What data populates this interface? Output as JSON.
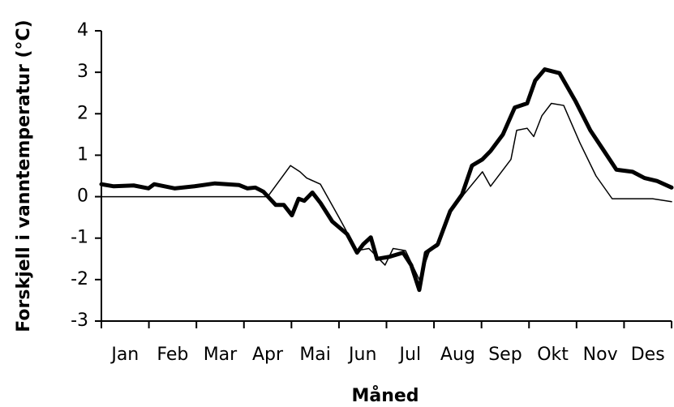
{
  "chart_data": {
    "type": "line",
    "x_label": "Måned",
    "y_label": "Forskjell i vanntemperatur (°C)",
    "categories": [
      "Jan",
      "Feb",
      "Mar",
      "Apr",
      "Mai",
      "Jun",
      "Jul",
      "Aug",
      "Sep",
      "Okt",
      "Nov",
      "Des"
    ],
    "xlim": [
      0,
      12
    ],
    "xticks": [
      0,
      1,
      2,
      3,
      4,
      5,
      6,
      7,
      8,
      9,
      10,
      11,
      12
    ],
    "ylim": [
      -3,
      4
    ],
    "yticks": [
      -3,
      -2,
      -1,
      0,
      1,
      2,
      3,
      4
    ],
    "series": [
      {
        "color": "#000000",
        "width": 5,
        "x": [
          0,
          0.26,
          0.68,
          0.99,
          1.11,
          1.54,
          1.96,
          2.39,
          2.9,
          3.07,
          3.24,
          3.41,
          3.67,
          3.84,
          4.01,
          4.15,
          4.27,
          4.44,
          4.61,
          4.86,
          5.17,
          5.38,
          5.51,
          5.67,
          5.8,
          6.06,
          6.35,
          6.52,
          6.69,
          6.83,
          7.08,
          7.34,
          7.59,
          7.8,
          8.02,
          8.19,
          8.45,
          8.7,
          8.96,
          9.13,
          9.33,
          9.64,
          9.98,
          10.29,
          10.58,
          10.84,
          11.18,
          11.43,
          11.69,
          12
        ],
        "values": [
          0.3,
          0.25,
          0.27,
          0.2,
          0.3,
          0.2,
          0.25,
          0.32,
          0.28,
          0.2,
          0.22,
          0.12,
          -0.2,
          -0.2,
          -0.45,
          -0.05,
          -0.1,
          0.1,
          -0.15,
          -0.6,
          -0.9,
          -1.35,
          -1.15,
          -0.98,
          -1.5,
          -1.45,
          -1.35,
          -1.65,
          -2.25,
          -1.35,
          -1.15,
          -0.35,
          0.05,
          0.75,
          0.9,
          1.1,
          1.5,
          2.15,
          2.25,
          2.8,
          3.07,
          2.98,
          2.3,
          1.6,
          1.1,
          0.65,
          0.6,
          0.45,
          0.38,
          0.22
        ]
      },
      {
        "color": "#000000",
        "width": 1.5,
        "x": [
          0,
          3.5,
          3.98,
          4.18,
          4.32,
          4.61,
          5.0,
          5.38,
          5.63,
          5.97,
          6.14,
          6.4,
          6.69,
          6.91,
          7.08,
          7.34,
          7.59,
          8.02,
          8.19,
          8.62,
          8.74,
          8.96,
          9.1,
          9.27,
          9.47,
          9.73,
          10.07,
          10.41,
          10.75,
          11.35,
          11.6,
          12
        ],
        "values": [
          0,
          0,
          0.75,
          0.6,
          0.45,
          0.3,
          -0.5,
          -1.3,
          -1.25,
          -1.65,
          -1.25,
          -1.3,
          -2.0,
          -1.3,
          -1.2,
          -0.4,
          0,
          0.6,
          0.25,
          0.9,
          1.6,
          1.65,
          1.45,
          1.95,
          2.25,
          2.2,
          1.3,
          0.5,
          -0.05,
          -0.05,
          -0.05,
          -0.12
        ]
      }
    ]
  }
}
